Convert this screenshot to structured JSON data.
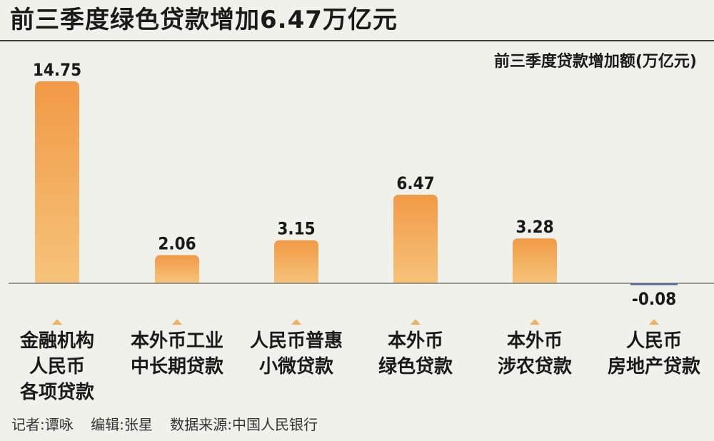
{
  "title": "前三季度绿色贷款增加6.47万亿元",
  "unit_label": "前三季度贷款增加额(万亿元)",
  "credits": [
    "记者:谭咏",
    "编辑:张星",
    "数据来源:中国人民银行"
  ],
  "colors": {
    "bar_top": "#f19a45",
    "bar_bottom": "#f6c37a",
    "negative_bar": "#3f66a8",
    "arrow": "#f2b15f",
    "baseline": "#7a7a7a"
  },
  "chart_data": {
    "type": "bar",
    "categories": [
      [
        "金融机构",
        "人民币",
        "各项贷款"
      ],
      [
        "本外币工业",
        "中长期贷款"
      ],
      [
        "人民币普惠",
        "小微贷款"
      ],
      [
        "本外币",
        "绿色贷款"
      ],
      [
        "本外币",
        "涉农贷款"
      ],
      [
        "人民币",
        "房地产贷款"
      ]
    ],
    "values": [
      14.75,
      2.06,
      3.15,
      6.47,
      3.28,
      -0.08
    ],
    "value_labels": [
      "14.75",
      "2.06",
      "3.15",
      "6.47",
      "3.28",
      "-0.08"
    ],
    "ylabel": "前三季度贷款增加额(万亿元)",
    "grid": false,
    "legend": "none"
  }
}
